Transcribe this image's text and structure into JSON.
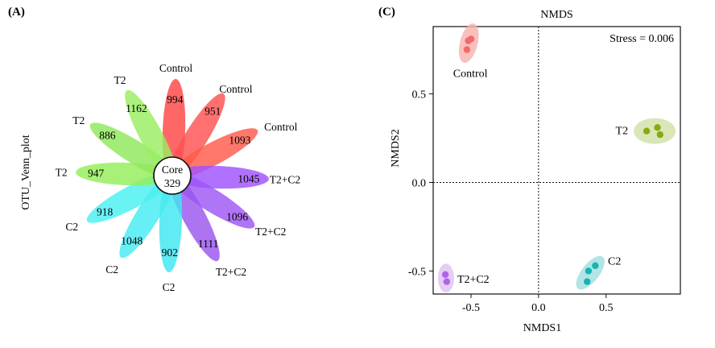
{
  "panels": {
    "a_label": "(A)",
    "c_label": "(C)"
  },
  "venn": {
    "ylabel": "OTU_Venn_plot",
    "core_label": "Core",
    "core_value": "329",
    "petals": [
      {
        "group": "Control",
        "count": "994",
        "color": "#ff4545"
      },
      {
        "group": "Control",
        "count": "951",
        "color": "#ff5050"
      },
      {
        "group": "Control",
        "count": "1093",
        "color": "#ff5a4a"
      },
      {
        "group": "T2+C2",
        "count": "1045",
        "color": "#a052ff"
      },
      {
        "group": "T2+C2",
        "count": "1096",
        "color": "#9f55f5"
      },
      {
        "group": "T2+C2",
        "count": "1111",
        "color": "#9a55ee"
      },
      {
        "group": "C2",
        "count": "902",
        "color": "#3ee6f0"
      },
      {
        "group": "C2",
        "count": "1048",
        "color": "#44ecf2"
      },
      {
        "group": "C2",
        "count": "918",
        "color": "#49f0f3"
      },
      {
        "group": "T2",
        "count": "947",
        "color": "#94ee5a"
      },
      {
        "group": "T2",
        "count": "886",
        "color": "#8fe85a"
      },
      {
        "group": "T2",
        "count": "1162",
        "color": "#9aee60"
      }
    ]
  },
  "chart_data": {
    "type": "scatter",
    "title": "NMDS",
    "xlabel": "NMDS1",
    "ylabel": "NMDS2",
    "annotation": "Stress = 0.006",
    "xlim": [
      -0.78,
      1.05
    ],
    "ylim": [
      -0.63,
      0.88
    ],
    "xticks": [
      -0.5,
      0.0,
      0.5
    ],
    "yticks": [
      -0.5,
      0.0,
      0.5
    ],
    "xtick_labels": [
      "-0.5",
      "0.0",
      "0.5"
    ],
    "ytick_labels": [
      "-0.5",
      "0.0",
      "0.5"
    ],
    "reference_lines": {
      "x": 0,
      "y": 0
    },
    "series": [
      {
        "name": "Control",
        "color": "#f26a6a",
        "ellipse_color": "#f7b0ae",
        "points": [
          [
            -0.52,
            0.8
          ],
          [
            -0.5,
            0.81
          ],
          [
            -0.53,
            0.75
          ]
        ]
      },
      {
        "name": "T2",
        "color": "#86ab0c",
        "ellipse_color": "#cfe0a6",
        "points": [
          [
            0.8,
            0.29
          ],
          [
            0.88,
            0.31
          ],
          [
            0.9,
            0.27
          ]
        ]
      },
      {
        "name": "C2",
        "color": "#18b3b3",
        "ellipse_color": "#9fdede",
        "points": [
          [
            0.37,
            -0.5
          ],
          [
            0.42,
            -0.47
          ],
          [
            0.36,
            -0.56
          ]
        ]
      },
      {
        "name": "T2+C2",
        "color": "#b063e8",
        "ellipse_color": "#dfc0f3",
        "points": [
          [
            -0.69,
            -0.52
          ],
          [
            -0.68,
            -0.56
          ]
        ]
      }
    ]
  }
}
